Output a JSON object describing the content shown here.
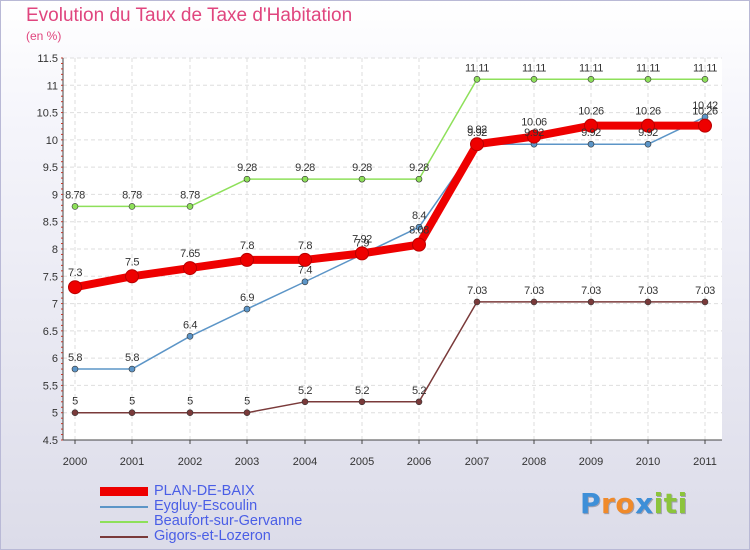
{
  "title": "Evolution du Taux de Taxe d'Habitation",
  "subtitle": "(en %)",
  "chart_data": {
    "type": "line",
    "title": "Evolution du Taux de Taxe d'Habitation",
    "ylabel": "(en %)",
    "xlabel": "",
    "x": [
      "2000",
      "2001",
      "2002",
      "2003",
      "2004",
      "2005",
      "2006",
      "2007",
      "2008",
      "2009",
      "2010",
      "2011"
    ],
    "ylim": [
      4.5,
      11.5
    ],
    "yticks": [
      "4.5",
      "5",
      "5.5",
      "6",
      "6.5",
      "7",
      "7.5",
      "8",
      "8.5",
      "9",
      "9.5",
      "10",
      "10.5",
      "11",
      "11.5"
    ],
    "grid": true,
    "legend_position": "bottom-left",
    "series": [
      {
        "name": "PLAN-DE-BAIX",
        "color": "#ee0000",
        "values": [
          7.3,
          7.5,
          7.65,
          7.8,
          7.8,
          7.92,
          8.08,
          9.92,
          10.06,
          10.26,
          10.26,
          10.26
        ],
        "labels": [
          "7.3",
          "7.5",
          "7.65",
          "7.8",
          "7.8",
          "7.92",
          "8.08",
          "9.92",
          "10.06",
          "10.26",
          "10.26",
          "10.26"
        ]
      },
      {
        "name": "Eygluy-Escoulin",
        "color": "#5c95c7",
        "values": [
          5.8,
          5.8,
          6.4,
          6.9,
          7.4,
          7.9,
          8.4,
          9.92,
          9.92,
          9.92,
          9.92,
          10.42
        ],
        "labels": [
          "5.8",
          "5.8",
          "6.4",
          "6.9",
          "7.4",
          "7.9",
          "8.4",
          "9.92",
          "9.92",
          "9.92",
          "9.92",
          "10.42"
        ]
      },
      {
        "name": "Beaufort-sur-Gervanne",
        "color": "#8ee05a",
        "values": [
          8.78,
          8.78,
          8.78,
          9.28,
          9.28,
          9.28,
          9.28,
          11.11,
          11.11,
          11.11,
          11.11,
          11.11
        ],
        "labels": [
          "8.78",
          "8.78",
          "8.78",
          "9.28",
          "9.28",
          "9.28",
          "9.28",
          "11.11",
          "11.11",
          "11.11",
          "11.11",
          "11.11"
        ]
      },
      {
        "name": "Gigors-et-Lozeron",
        "color": "#7a3a3a",
        "values": [
          5,
          5,
          5,
          5,
          5.2,
          5.2,
          5.2,
          7.03,
          7.03,
          7.03,
          7.03,
          7.03
        ],
        "labels": [
          "5",
          "5",
          "5",
          "5",
          "5.2",
          "5.2",
          "5.2",
          "7.03",
          "7.03",
          "7.03",
          "7.03",
          "7.03"
        ]
      }
    ]
  },
  "legend": {
    "items": [
      {
        "label": "PLAN-DE-BAIX",
        "color": "#ee0000"
      },
      {
        "label": "Eygluy-Escoulin",
        "color": "#5c95c7"
      },
      {
        "label": "Beaufort-sur-Gervanne",
        "color": "#8ee05a"
      },
      {
        "label": "Gigors-et-Lozeron",
        "color": "#7a3a3a"
      }
    ]
  },
  "logo": {
    "text": "Proxiti",
    "letters": [
      "P",
      "r",
      "o",
      "x",
      "i",
      "t",
      "i"
    ],
    "colors": [
      "#3e8fd8",
      "#f08a2a",
      "#f08a2a",
      "#3e8fd8",
      "#8cc43c",
      "#8cc43c",
      "#8cc43c"
    ]
  }
}
